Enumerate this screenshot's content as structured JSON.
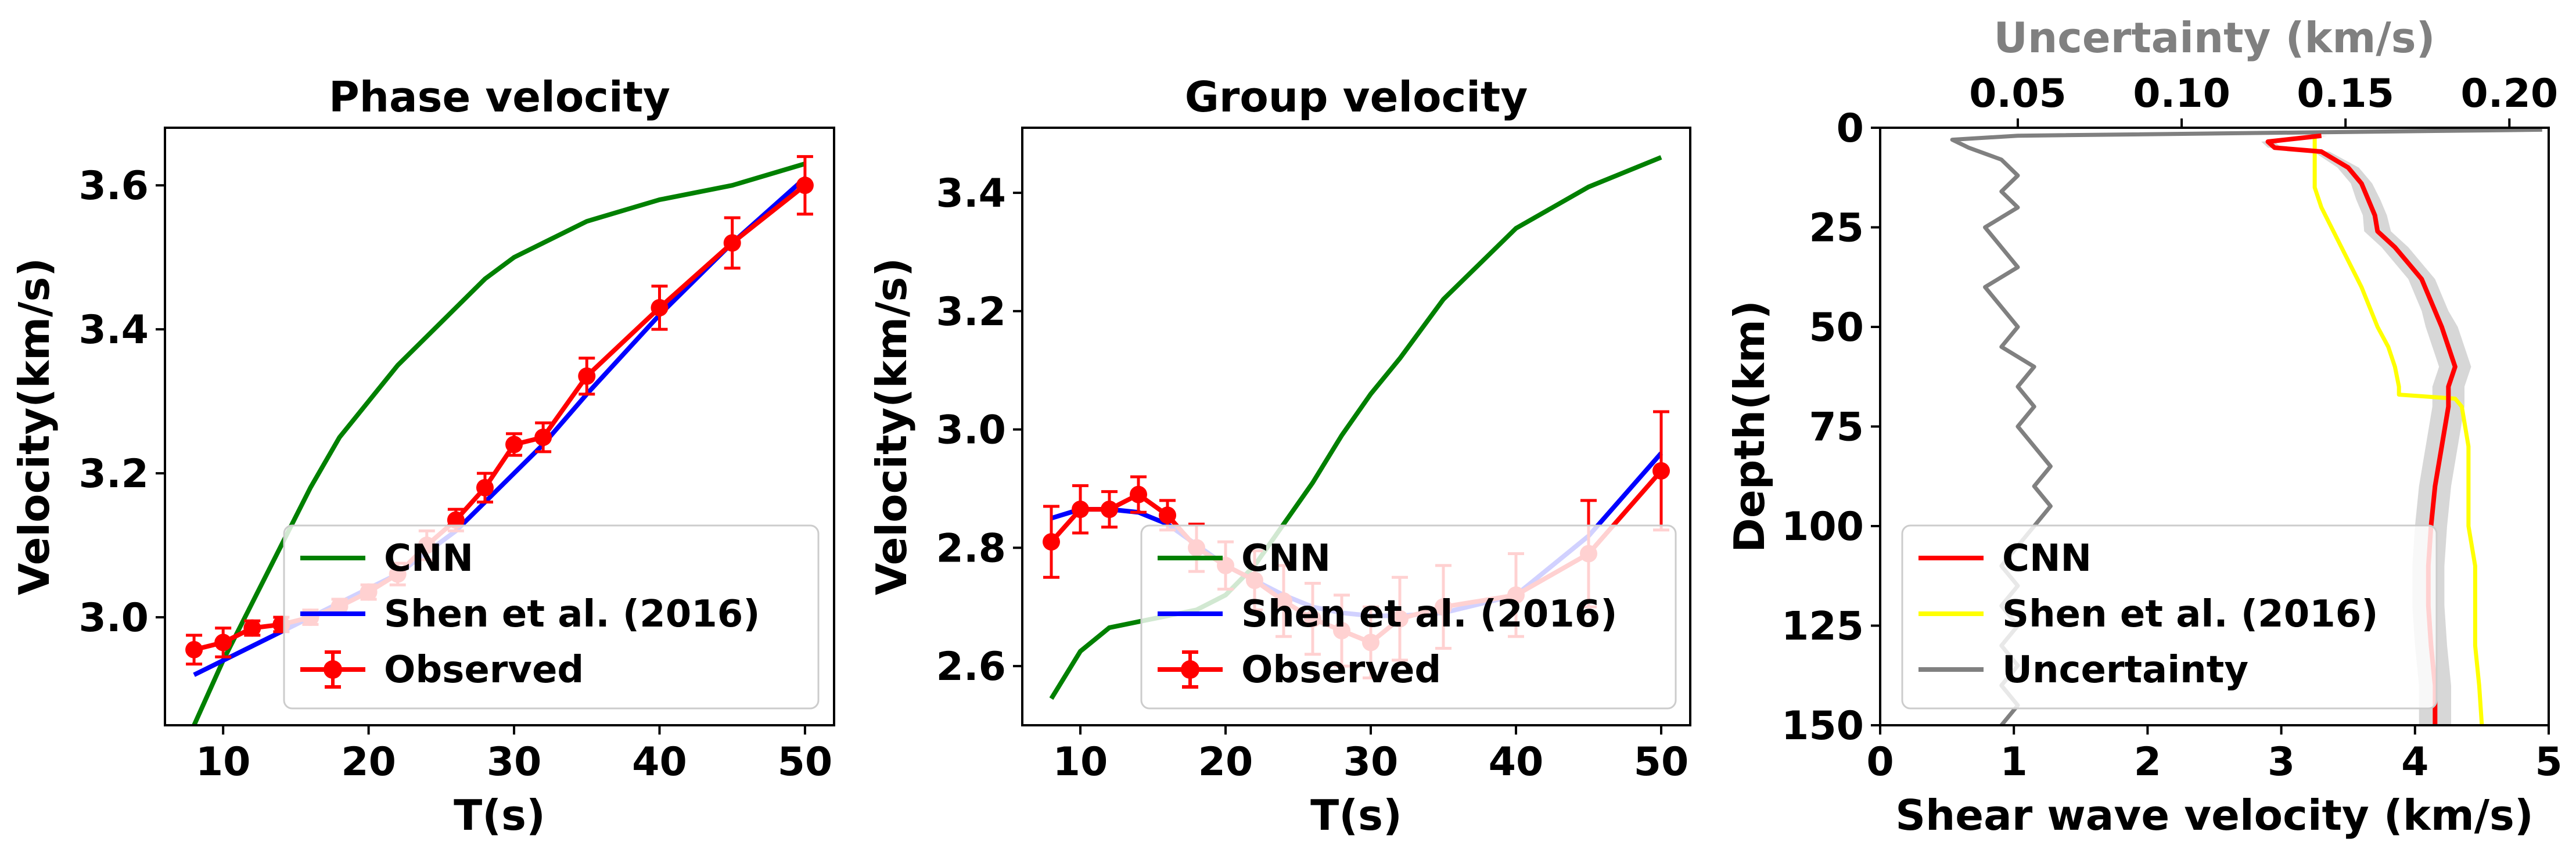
{
  "chart_data": [
    {
      "type": "line",
      "title": "Phase velocity",
      "xlabel": "T(s)",
      "ylabel": "Velocity(km/s)",
      "xlim": [
        6,
        52
      ],
      "ylim": [
        2.85,
        3.68
      ],
      "xticks": [
        10,
        20,
        30,
        40,
        50
      ],
      "yticks": [
        3.0,
        3.2,
        3.4,
        3.6
      ],
      "ytick_labels": [
        "3.0",
        "3.2",
        "3.4",
        "3.6"
      ],
      "legend_position": "lower right",
      "series": [
        {
          "name": "CNN",
          "color": "#008000",
          "x": [
            8,
            10,
            12,
            14,
            16,
            18,
            20,
            22,
            24,
            26,
            28,
            30,
            32,
            35,
            40,
            45,
            50
          ],
          "y": [
            2.85,
            2.94,
            3.02,
            3.1,
            3.18,
            3.25,
            3.3,
            3.35,
            3.39,
            3.43,
            3.47,
            3.5,
            3.52,
            3.55,
            3.58,
            3.6,
            3.63
          ]
        },
        {
          "name": "Shen et al. (2016)",
          "color": "#0000ff",
          "x": [
            8,
            10,
            12,
            14,
            16,
            18,
            20,
            22,
            24,
            26,
            28,
            30,
            32,
            35,
            40,
            45,
            50
          ],
          "y": [
            2.92,
            2.94,
            2.96,
            2.98,
            3.0,
            3.02,
            3.04,
            3.06,
            3.09,
            3.12,
            3.16,
            3.2,
            3.24,
            3.31,
            3.42,
            3.52,
            3.61
          ]
        },
        {
          "name": "Observed",
          "color": "#ff0000",
          "x": [
            8,
            10,
            12,
            14,
            16,
            18,
            20,
            22,
            24,
            26,
            28,
            30,
            32,
            35,
            40,
            45,
            50
          ],
          "y": [
            2.955,
            2.965,
            2.985,
            2.99,
            3.0,
            3.015,
            3.035,
            3.06,
            3.1,
            3.135,
            3.18,
            3.24,
            3.25,
            3.335,
            3.43,
            3.52,
            3.6
          ],
          "err": [
            0.02,
            0.02,
            0.01,
            0.01,
            0.01,
            0.01,
            0.01,
            0.015,
            0.02,
            0.015,
            0.02,
            0.015,
            0.02,
            0.025,
            0.03,
            0.035,
            0.04
          ]
        }
      ]
    },
    {
      "type": "line",
      "title": "Group velocity",
      "xlabel": "T(s)",
      "ylabel": "Velocity(km/s)",
      "xlim": [
        6,
        52
      ],
      "ylim": [
        2.5,
        3.51
      ],
      "xticks": [
        10,
        20,
        30,
        40,
        50
      ],
      "yticks": [
        2.6,
        2.8,
        3.0,
        3.2,
        3.4
      ],
      "ytick_labels": [
        "2.6",
        "2.8",
        "3.0",
        "3.2",
        "3.4"
      ],
      "legend_position": "lower right",
      "series": [
        {
          "name": "CNN",
          "color": "#008000",
          "x": [
            8,
            10,
            12,
            14,
            16,
            18,
            20,
            22,
            24,
            26,
            28,
            30,
            32,
            35,
            40,
            45,
            50
          ],
          "y": [
            2.545,
            2.625,
            2.665,
            2.675,
            2.685,
            2.695,
            2.72,
            2.77,
            2.84,
            2.91,
            2.99,
            3.06,
            3.12,
            3.22,
            3.34,
            3.41,
            3.46
          ]
        },
        {
          "name": "Shen et al. (2016)",
          "color": "#0000ff",
          "x": [
            8,
            10,
            12,
            14,
            16,
            18,
            20,
            22,
            24,
            26,
            28,
            30,
            32,
            35,
            40,
            45,
            50
          ],
          "y": [
            2.85,
            2.865,
            2.865,
            2.86,
            2.84,
            2.805,
            2.77,
            2.745,
            2.72,
            2.7,
            2.69,
            2.685,
            2.685,
            2.69,
            2.72,
            2.82,
            2.96
          ]
        },
        {
          "name": "Observed",
          "color": "#ff0000",
          "x": [
            8,
            10,
            12,
            14,
            16,
            18,
            20,
            22,
            24,
            26,
            28,
            30,
            32,
            35,
            40,
            45,
            50
          ],
          "y": [
            2.81,
            2.865,
            2.865,
            2.89,
            2.855,
            2.8,
            2.77,
            2.745,
            2.71,
            2.68,
            2.66,
            2.64,
            2.68,
            2.7,
            2.72,
            2.79,
            2.93
          ],
          "err": [
            0.06,
            0.04,
            0.03,
            0.03,
            0.025,
            0.04,
            0.04,
            0.05,
            0.06,
            0.06,
            0.06,
            0.06,
            0.07,
            0.07,
            0.07,
            0.09,
            0.1
          ]
        }
      ]
    },
    {
      "type": "line",
      "title": "",
      "xlabel": "Shear wave velocity (km/s)",
      "ylabel": "Depth(km)",
      "secondary_xlabel": "Uncertainty (km/s)",
      "xlim": [
        0,
        5
      ],
      "ylim": [
        150,
        0
      ],
      "y_inverted": true,
      "xticks": [
        0,
        1,
        2,
        3,
        4,
        5
      ],
      "yticks": [
        0,
        25,
        50,
        75,
        100,
        125,
        150
      ],
      "secondary_xlim": [
        0.008,
        0.212
      ],
      "secondary_xticks": [
        0.05,
        0.1,
        0.15,
        0.2
      ],
      "secondary_xtick_labels": [
        "0.05",
        "0.10",
        "0.15",
        "0.20"
      ],
      "legend_position": "lower left",
      "series": [
        {
          "name": "CNN",
          "color": "#ff0000",
          "band_color": "#d3d3d3",
          "depth": [
            2,
            3.5,
            5,
            6,
            8,
            10,
            14,
            18,
            22,
            26,
            30,
            34,
            38,
            42,
            46,
            50,
            55,
            60,
            65,
            70,
            80,
            90,
            100,
            110,
            120,
            130,
            140,
            150
          ],
          "vs": [
            3.3,
            2.9,
            2.95,
            3.3,
            3.4,
            3.5,
            3.6,
            3.65,
            3.7,
            3.72,
            3.85,
            3.95,
            4.05,
            4.1,
            4.15,
            4.2,
            4.25,
            4.3,
            4.25,
            4.25,
            4.2,
            4.15,
            4.12,
            4.1,
            4.1,
            4.12,
            4.15,
            4.15
          ],
          "band_halfwidth": [
            0.05,
            0.05,
            0.05,
            0.06,
            0.07,
            0.08,
            0.08,
            0.09,
            0.09,
            0.1,
            0.1,
            0.1,
            0.1,
            0.1,
            0.1,
            0.12,
            0.12,
            0.12,
            0.12,
            0.12,
            0.12,
            0.12,
            0.12,
            0.12,
            0.12,
            0.12,
            0.12,
            0.12
          ]
        },
        {
          "name": "Shen et al. (2016)",
          "color": "#ffff00",
          "depth": [
            2,
            5,
            10,
            15,
            20,
            30,
            40,
            50,
            55,
            60,
            65,
            67,
            68,
            70,
            80,
            90,
            100,
            110,
            120,
            130,
            140,
            150
          ],
          "vs": [
            3.25,
            3.25,
            3.25,
            3.25,
            3.3,
            3.45,
            3.6,
            3.72,
            3.8,
            3.85,
            3.88,
            3.88,
            4.3,
            4.35,
            4.4,
            4.4,
            4.4,
            4.45,
            4.45,
            4.45,
            4.48,
            4.5
          ]
        },
        {
          "name": "Uncertainty",
          "color": "#808080",
          "depth": [
            0.5,
            2,
            3,
            5,
            8,
            12,
            16,
            20,
            25,
            30,
            35,
            40,
            45,
            50,
            55,
            60,
            65,
            70,
            75,
            80,
            85,
            90,
            95,
            100,
            105,
            110,
            115,
            120,
            125,
            130,
            135,
            140,
            145,
            150
          ],
          "uncertainty": [
            0.21,
            0.05,
            0.03,
            0.035,
            0.045,
            0.05,
            0.045,
            0.05,
            0.04,
            0.045,
            0.05,
            0.04,
            0.045,
            0.05,
            0.045,
            0.055,
            0.05,
            0.055,
            0.05,
            0.055,
            0.06,
            0.055,
            0.06,
            0.055,
            0.05,
            0.045,
            0.05,
            0.045,
            0.05,
            0.045,
            0.05,
            0.045,
            0.05,
            0.045
          ]
        }
      ]
    }
  ]
}
